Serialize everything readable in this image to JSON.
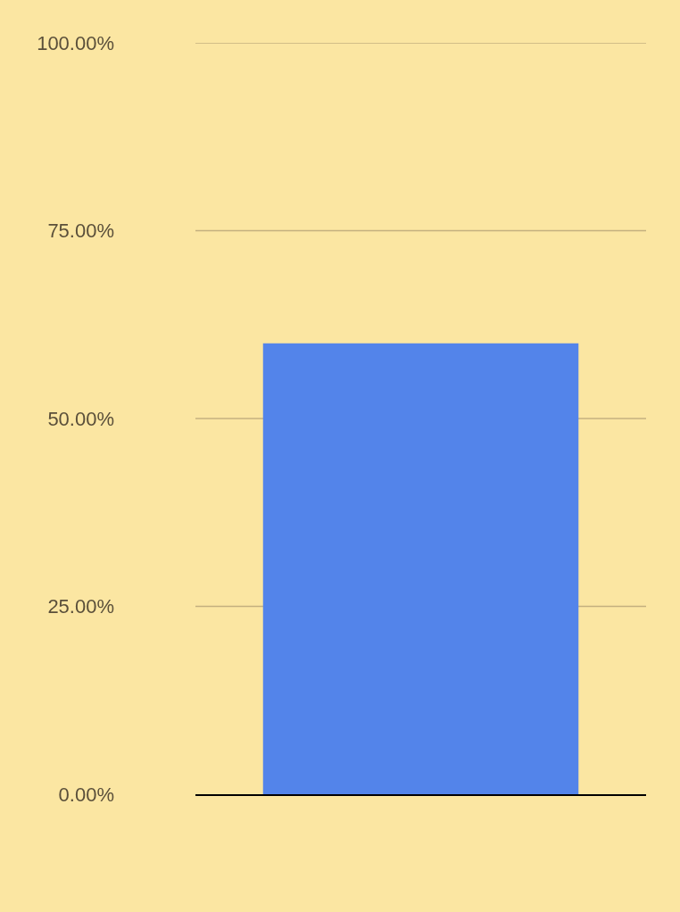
{
  "chart_data": {
    "type": "bar",
    "categories": [
      null
    ],
    "values": [
      60
    ],
    "color": "#5384ea",
    "ylim": [
      0,
      100
    ],
    "yticks": [
      {
        "value": 0,
        "label": "0.00%"
      },
      {
        "value": 25,
        "label": "25.00%"
      },
      {
        "value": 50,
        "label": "50.00%"
      },
      {
        "value": 75,
        "label": "75.00%"
      },
      {
        "value": 100,
        "label": "100.00%"
      }
    ],
    "grid": "y",
    "tick_labels": "y"
  }
}
